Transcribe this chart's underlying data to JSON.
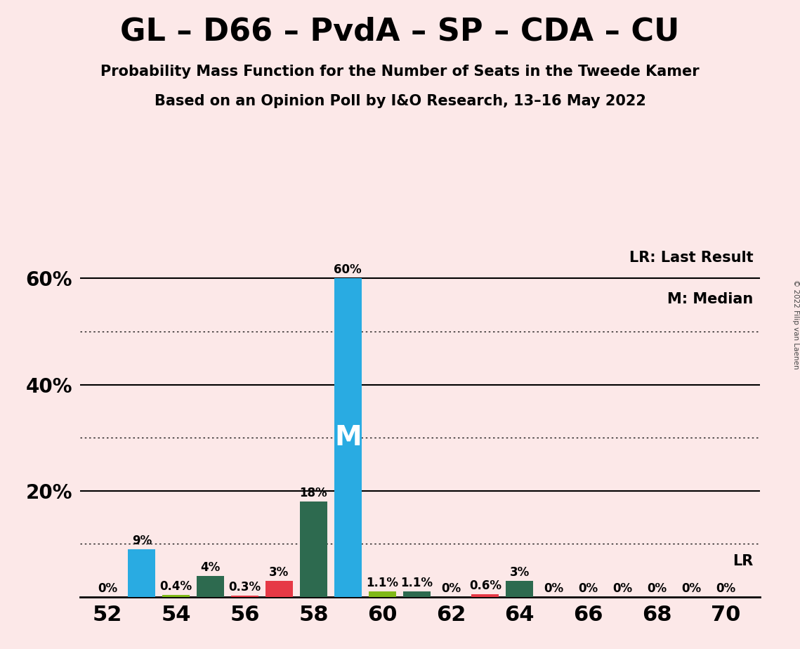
{
  "title": "GL – D66 – PvdA – SP – CDA – CU",
  "subtitle1": "Probability Mass Function for the Number of Seats in the Tweede Kamer",
  "subtitle2": "Based on an Opinion Poll by I&O Research, 13–16 May 2022",
  "copyright": "© 2022 Filip van Laenen",
  "background_color": "#fce8e8",
  "lr_label": "LR: Last Result",
  "m_label": "M: Median",
  "lr_line_label": "LR",
  "bars": [
    {
      "seat": 52,
      "color": "#29abe2",
      "value": 0.0,
      "label": "0%"
    },
    {
      "seat": 53,
      "color": "#29abe2",
      "value": 9.0,
      "label": "9%"
    },
    {
      "seat": 54,
      "color": "#80b918",
      "value": 0.4,
      "label": "0.4%"
    },
    {
      "seat": 55,
      "color": "#2d6a4f",
      "value": 4.0,
      "label": "4%"
    },
    {
      "seat": 56,
      "color": "#e63946",
      "value": 0.3,
      "label": "0.3%"
    },
    {
      "seat": 57,
      "color": "#e63946",
      "value": 3.0,
      "label": "3%"
    },
    {
      "seat": 58,
      "color": "#2d6a4f",
      "value": 18.0,
      "label": "18%"
    },
    {
      "seat": 59,
      "color": "#29abe2",
      "value": 60.0,
      "label": "60%"
    },
    {
      "seat": 60,
      "color": "#80b918",
      "value": 1.1,
      "label": "1.1%"
    },
    {
      "seat": 61,
      "color": "#2d6a4f",
      "value": 1.1,
      "label": "1.1%"
    },
    {
      "seat": 62,
      "color": "#29abe2",
      "value": 0.0,
      "label": "0%"
    },
    {
      "seat": 63,
      "color": "#e63946",
      "value": 0.6,
      "label": "0.6%"
    },
    {
      "seat": 64,
      "color": "#2d6a4f",
      "value": 3.0,
      "label": "3%"
    },
    {
      "seat": 65,
      "color": "#29abe2",
      "value": 0.0,
      "label": "0%"
    },
    {
      "seat": 66,
      "color": "#29abe2",
      "value": 0.0,
      "label": "0%"
    },
    {
      "seat": 67,
      "color": "#29abe2",
      "value": 0.0,
      "label": "0%"
    },
    {
      "seat": 68,
      "color": "#29abe2",
      "value": 0.0,
      "label": "0%"
    },
    {
      "seat": 69,
      "color": "#29abe2",
      "value": 0.0,
      "label": "0%"
    },
    {
      "seat": 70,
      "color": "#29abe2",
      "value": 0.0,
      "label": "0%"
    }
  ],
  "median_seat": 59,
  "ylim": [
    0,
    66
  ],
  "yticks": [
    20,
    40,
    60
  ],
  "ytick_labels": [
    "20%",
    "40%",
    "60%"
  ],
  "xtick_positions": [
    52,
    54,
    56,
    58,
    60,
    62,
    64,
    66,
    68,
    70
  ],
  "xmin": 51.2,
  "xmax": 71.0,
  "bar_width": 0.8,
  "dotted_lines": [
    10,
    30,
    50
  ],
  "solid_lines": [
    20,
    40,
    60
  ],
  "title_fontsize": 32,
  "subtitle_fontsize": 15,
  "label_fontsize": 12,
  "ytick_fontsize": 20,
  "xtick_fontsize": 22,
  "m_fontsize": 28
}
